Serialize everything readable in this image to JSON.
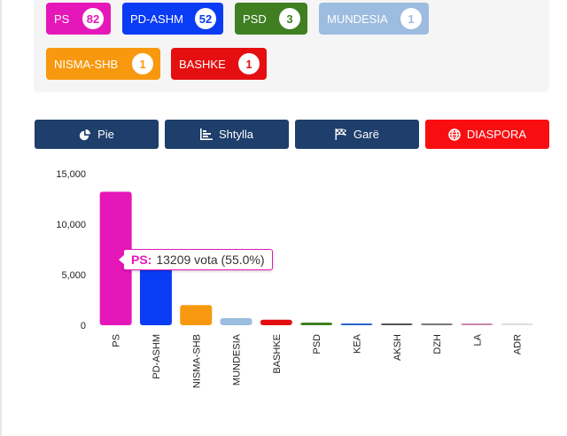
{
  "seat_badges": [
    {
      "party": "PS",
      "seats": "82",
      "color": "#e617b8"
    },
    {
      "party": "PD-ASHM",
      "seats": "52",
      "color": "#0a3cf5"
    },
    {
      "party": "PSD",
      "seats": "3",
      "color": "#3f7f22"
    },
    {
      "party": "MUNDESIA",
      "seats": "1",
      "color": "#9cbce0"
    },
    {
      "party": "NISMA-SHB",
      "seats": "1",
      "color": "#f8980f"
    },
    {
      "party": "BASHKE",
      "seats": "1",
      "color": "#e50e10"
    }
  ],
  "view_buttons": {
    "pie": "Pie",
    "bar": "Shtylla",
    "race": "Garë",
    "diaspora": "DIASPORA"
  },
  "tooltip": {
    "label": "PS:",
    "text": "13209 vota (55.0%)"
  },
  "chart_data": {
    "type": "bar",
    "categories": [
      "PS",
      "PD-ASHM",
      "NISMA-SHB",
      "MUNDESIA",
      "BASHKE",
      "PSD",
      "KEA",
      "AKSH",
      "DZH",
      "LA",
      "ADR"
    ],
    "values": [
      13209,
      6700,
      2000,
      700,
      550,
      260,
      180,
      140,
      100,
      70,
      40
    ],
    "colors": [
      "#e617b8",
      "#0a3cf5",
      "#f8980f",
      "#9cbce0",
      "#e50e10",
      "#3f7f22",
      "#2b63c8",
      "#555555",
      "#777777",
      "#c98aa8",
      "#dddddd"
    ],
    "yticks": [
      "0",
      "5,000",
      "10,000",
      "15,000"
    ],
    "ylim": [
      0,
      15000
    ],
    "title": "",
    "xlabel": "",
    "ylabel": "",
    "grid": false
  }
}
